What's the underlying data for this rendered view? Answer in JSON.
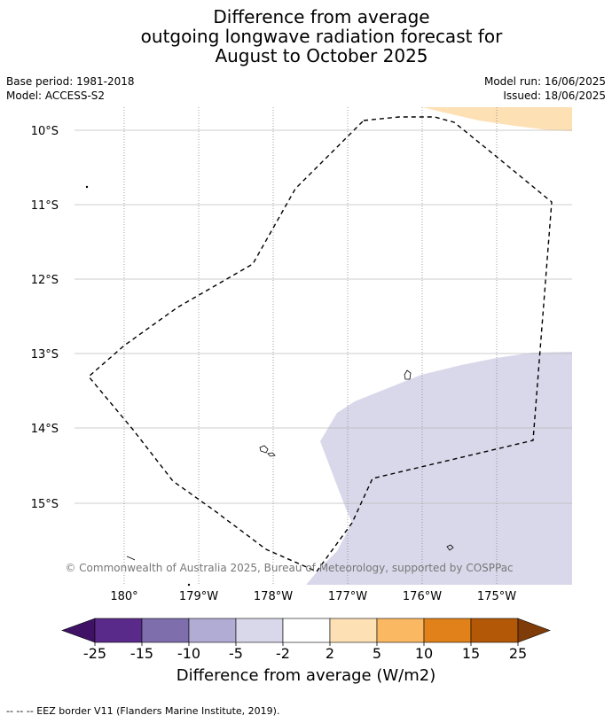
{
  "title": {
    "line1": "Difference from average",
    "line2": "outgoing longwave radiation forecast for",
    "line3": "August to October 2025"
  },
  "meta": {
    "base_period": "Base period: 1981-2018",
    "model": "Model: ACCESS-S2",
    "model_run": "Model run: 16/06/2025",
    "issued": "Issued: 18/06/2025"
  },
  "map": {
    "lat_labels": [
      "10°S",
      "11°S",
      "12°S",
      "13°S",
      "14°S",
      "15°S"
    ],
    "lon_labels": [
      "180°",
      "179°W",
      "178°W",
      "177°W",
      "176°W",
      "175°W"
    ],
    "copyright": "© Commonwealth of Australia 2025, Bureau of Meteorology, supported by COSPPac",
    "colors": {
      "anomaly_negative": "#d8d8ea",
      "anomaly_positive": "#fde0b4",
      "eez_border": "#000000",
      "gridline": "#bbbbbb"
    }
  },
  "colorbar": {
    "ticks": [
      "-25",
      "-15",
      "-10",
      "-5",
      "-2",
      "2",
      "5",
      "10",
      "15",
      "25"
    ],
    "colors": [
      "#3f1266",
      "#5a2a8a",
      "#7f6eac",
      "#b1acd3",
      "#d8d8ea",
      "#ffffff",
      "#fde0b4",
      "#fbb862",
      "#e08219",
      "#b35806",
      "#7f3b08"
    ],
    "label": "Difference from average (W/m2)"
  },
  "footnote": "-- -- -- EEZ border V11 (Flanders Marine Institute, 2019)."
}
